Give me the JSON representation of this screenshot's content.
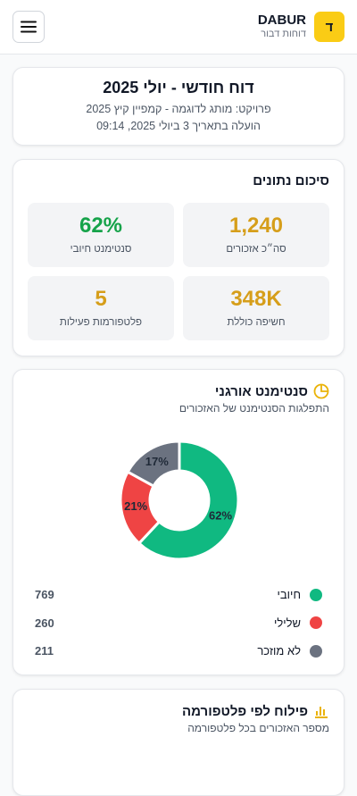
{
  "header": {
    "logo": "ד",
    "brand": "DABUR",
    "subtitle": "דוחות דבור"
  },
  "report": {
    "title": "דוח חודשי - יולי 2025",
    "project": "פרויקט: מותג לדוגמה - קמפיין קיץ 2025",
    "uploaded": "הועלה בתאריך 3 ביולי 2025, 09:14"
  },
  "summary": {
    "title": "סיכום נתונים",
    "stats": [
      {
        "value": "1,240",
        "label": "סה״כ אזכורים",
        "color": "#d69e1a"
      },
      {
        "value": "62%",
        "label": "סנטימנט חיובי",
        "color": "#16a34a"
      },
      {
        "value": "348K",
        "label": "חשיפה כוללת",
        "color": "#d69e1a"
      },
      {
        "value": "5",
        "label": "פלטפורמות פעילות",
        "color": "#d69e1a"
      }
    ]
  },
  "sentiment": {
    "title": "סנטימנט אורגני",
    "subtitle": "התפלגות הסנטימנט של האזכורים",
    "chart_data": {
      "type": "pie",
      "categories": [
        "חיובי",
        "שלילי",
        "לא מוזכר"
      ],
      "values": [
        62,
        21,
        17
      ],
      "value_labels": [
        "62%",
        "21%",
        "17%"
      ],
      "counts": [
        769,
        260,
        211
      ],
      "colors": [
        "#10b981",
        "#ef4444",
        "#6b7280"
      ]
    }
  },
  "platforms": {
    "title": "פילוח לפי פלטפורמה",
    "subtitle": "מספר האזכורים בכל פלטפורמה"
  }
}
